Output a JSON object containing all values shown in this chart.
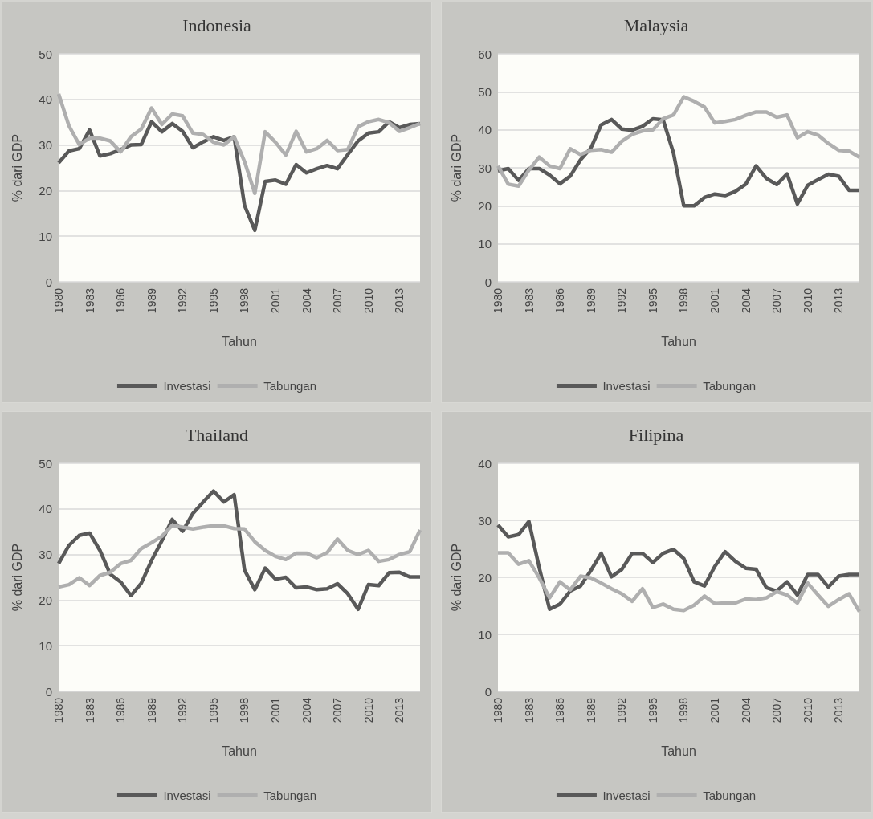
{
  "chart_data": [
    {
      "type": "line",
      "title": "Indonesia",
      "xlabel": "Tahun",
      "ylabel": "% dari GDP",
      "categories": [
        "1980",
        null,
        null,
        "1983",
        null,
        null,
        "1986",
        null,
        null,
        "1989",
        null,
        null,
        "1992",
        null,
        null,
        "1995",
        null,
        null,
        "1998",
        null,
        null,
        "2001",
        null,
        null,
        "2004",
        null,
        null,
        "2007",
        null,
        null,
        "2010",
        null,
        null,
        "2013",
        null,
        null
      ],
      "ylim": [
        0,
        50
      ],
      "yticks": [
        0,
        10,
        20,
        30,
        40,
        50
      ],
      "grid": "y",
      "legend": "bottom",
      "marker": "none",
      "series": [
        {
          "name": "Investasi",
          "color": "#595959",
          "values": [
            26.1,
            28.7,
            29.2,
            33.3,
            27.6,
            28.1,
            29,
            30,
            30.1,
            35.1,
            32.9,
            34.7,
            33,
            29.4,
            30.7,
            31.8,
            31,
            31.8,
            16.8,
            11.3,
            22,
            22.3,
            21.4,
            25.7,
            23.9,
            24.8,
            25.5,
            24.8,
            27.9,
            30.9,
            32.6,
            32.9,
            35.1,
            33.8,
            34.5,
            34.7
          ]
        },
        {
          "name": "Tabungan",
          "color": "#afafaf",
          "values": [
            41.2,
            34.2,
            30.1,
            31.5,
            31.5,
            30.9,
            28.5,
            31.8,
            33.5,
            38.1,
            34.5,
            36.8,
            36.4,
            32.6,
            32.3,
            30.6,
            30,
            31.8,
            26.4,
            19.4,
            32.9,
            30.6,
            27.8,
            33,
            28.5,
            29.2,
            31,
            28.8,
            29,
            34,
            35.1,
            35.6,
            34.9,
            33,
            33.8,
            34.7
          ]
        }
      ]
    },
    {
      "type": "line",
      "title": "Malaysia",
      "xlabel": "Tahun",
      "ylabel": "% dari GDP",
      "categories": [
        "1980",
        null,
        null,
        "1983",
        null,
        null,
        "1986",
        null,
        null,
        "1989",
        null,
        null,
        "1992",
        null,
        null,
        "1995",
        null,
        null,
        "1998",
        null,
        null,
        "2001",
        null,
        null,
        "2004",
        null,
        null,
        "2007",
        null,
        null,
        "2010",
        null,
        null,
        "2013",
        null,
        null
      ],
      "ylim": [
        0,
        60
      ],
      "yticks": [
        0,
        10,
        20,
        30,
        40,
        50,
        60
      ],
      "grid": "y",
      "legend": "bottom",
      "marker": "none",
      "series": [
        {
          "name": "Investasi",
          "color": "#595959",
          "values": [
            29.2,
            29.8,
            26.7,
            29.8,
            29.8,
            28.1,
            25.8,
            27.8,
            32.1,
            35.2,
            41.3,
            42.7,
            40.2,
            39.9,
            40.9,
            42.9,
            42.6,
            33.9,
            20,
            20,
            22.2,
            23.1,
            22.7,
            23.8,
            25.7,
            30.5,
            27.2,
            25.6,
            28.4,
            20.5,
            25.4,
            26.9,
            28.3,
            27.8,
            24.1,
            24.1
          ]
        },
        {
          "name": "Tabungan",
          "color": "#afafaf",
          "values": [
            30.5,
            25.7,
            25.2,
            29.4,
            32.8,
            30.5,
            29.8,
            35,
            33.5,
            34.6,
            34.8,
            34.1,
            37,
            38.8,
            39.7,
            40,
            42.9,
            43.9,
            48.7,
            47.5,
            46,
            41.8,
            42.2,
            42.7,
            43.8,
            44.7,
            44.7,
            43.3,
            43.9,
            37.9,
            39.5,
            38.6,
            36.4,
            34.6,
            34.4,
            32.8
          ]
        }
      ]
    },
    {
      "type": "line",
      "title": "Thailand",
      "xlabel": "Tahun",
      "ylabel": "% dari GDP",
      "categories": [
        "1980",
        null,
        null,
        "1983",
        null,
        null,
        "1986",
        null,
        null,
        "1989",
        null,
        null,
        "1992",
        null,
        null,
        "1995",
        null,
        null,
        "1998",
        null,
        null,
        "2001",
        null,
        null,
        "2004",
        null,
        null,
        "2007",
        null,
        null,
        "2010",
        null,
        null,
        "2013",
        null,
        null
      ],
      "ylim": [
        0,
        50
      ],
      "yticks": [
        0,
        10,
        20,
        30,
        40,
        50
      ],
      "grid": "y",
      "legend": "bottom",
      "marker": "none",
      "series": [
        {
          "name": "Investasi",
          "color": "#595959",
          "values": [
            28,
            32,
            34.2,
            34.7,
            30.9,
            25.7,
            24,
            21,
            23.7,
            28.7,
            33,
            37.7,
            35.1,
            39,
            41.5,
            43.9,
            41.5,
            43.1,
            26.6,
            22.3,
            27,
            24.6,
            25,
            22.7,
            22.9,
            22.3,
            22.5,
            23.6,
            21.4,
            18,
            23.4,
            23.2,
            26,
            26.1,
            25.1,
            25.1
          ]
        },
        {
          "name": "Tabungan",
          "color": "#afafaf",
          "values": [
            22.9,
            23.4,
            24.9,
            23.2,
            25.4,
            26.1,
            28,
            28.7,
            31.3,
            32.6,
            34,
            36.4,
            36,
            35.6,
            36,
            36.3,
            36.3,
            35.7,
            35.6,
            32.8,
            30.9,
            29.6,
            28.9,
            30.3,
            30.3,
            29.3,
            30.4,
            33.4,
            30.9,
            30,
            30.9,
            28.5,
            28.9,
            30,
            30.6,
            35.4
          ]
        }
      ]
    },
    {
      "type": "line",
      "title": "Filipina",
      "xlabel": "Tahun",
      "ylabel": "% dari GDP",
      "categories": [
        "1980",
        null,
        null,
        "1983",
        null,
        null,
        "1986",
        null,
        null,
        "1989",
        null,
        null,
        "1992",
        null,
        null,
        "1995",
        null,
        null,
        "1998",
        null,
        null,
        "2001",
        null,
        null,
        "2004",
        null,
        null,
        "2007",
        null,
        null,
        "2010",
        null,
        null,
        "2013",
        null,
        null
      ],
      "ylim": [
        0,
        40
      ],
      "yticks": [
        0,
        10,
        20,
        30,
        40
      ],
      "grid": "y",
      "legend": "bottom",
      "marker": "none",
      "series": [
        {
          "name": "Investasi",
          "color": "#595959",
          "values": [
            29.2,
            27.1,
            27.5,
            29.8,
            21.7,
            14.4,
            15.3,
            17.6,
            18.5,
            21.2,
            24.2,
            20.1,
            21.4,
            24.2,
            24.2,
            22.6,
            24.2,
            24.9,
            23.3,
            19.2,
            18.5,
            21.9,
            24.5,
            22.8,
            21.6,
            21.4,
            18.2,
            17.6,
            19.2,
            16.9,
            20.5,
            20.5,
            18.3,
            20.2,
            20.5,
            20.5
          ]
        },
        {
          "name": "Tabungan",
          "color": "#afafaf",
          "values": [
            24.3,
            24.3,
            22.3,
            22.9,
            19.9,
            16.4,
            19.2,
            17.8,
            20.2,
            19.9,
            19,
            18,
            17.1,
            15.8,
            18,
            14.7,
            15.3,
            14.4,
            14.2,
            15.1,
            16.7,
            15.4,
            15.5,
            15.5,
            16.2,
            16.1,
            16.4,
            17.5,
            16.9,
            15.5,
            19,
            16.9,
            14.9,
            16.1,
            17.1,
            14
          ]
        }
      ]
    }
  ]
}
